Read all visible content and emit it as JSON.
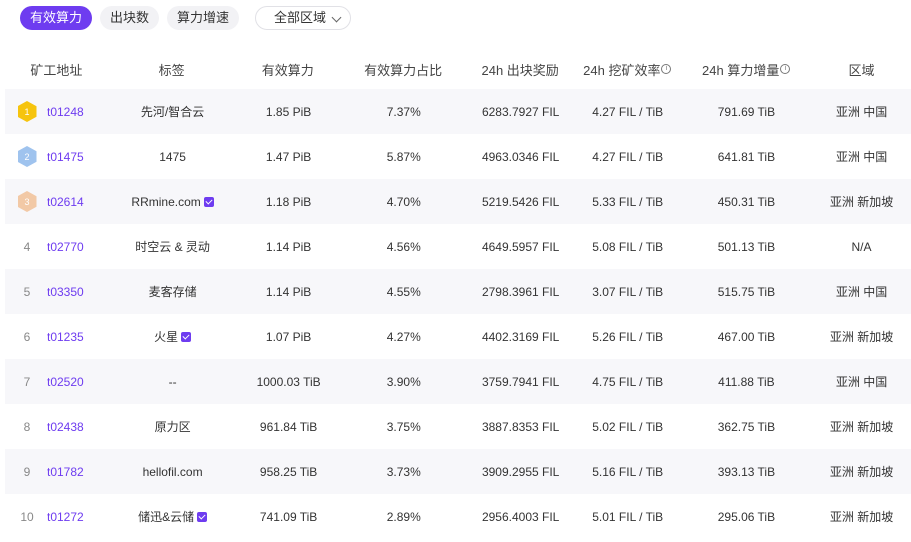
{
  "filters": {
    "tabs": [
      {
        "label": "有效算力",
        "active": true
      },
      {
        "label": "出块数",
        "active": false
      },
      {
        "label": "算力增速",
        "active": false
      }
    ],
    "region_select": {
      "value": "全部区域"
    }
  },
  "table": {
    "headers": {
      "address": "矿工地址",
      "tag": "标签",
      "power": "有效算力",
      "power_pct": "有效算力占比",
      "reward_24h": "24h 出块奖励",
      "efficiency_24h": "24h 挖矿效率",
      "power_increase_24h": "24h 算力增量",
      "region": "区域"
    },
    "rows": [
      {
        "rank": "1",
        "medal": "gold",
        "address": "t01248",
        "tag": "先河/智合云",
        "verified": false,
        "power": "1.85 PiB",
        "power_pct": "7.37%",
        "reward_24h": "6283.7927 FIL",
        "efficiency_24h": "4.27 FIL / TiB",
        "power_increase_24h": "791.69 TiB",
        "region": "亚洲 中国"
      },
      {
        "rank": "2",
        "medal": "silver",
        "address": "t01475",
        "tag": "1475",
        "verified": false,
        "power": "1.47 PiB",
        "power_pct": "5.87%",
        "reward_24h": "4963.0346 FIL",
        "efficiency_24h": "4.27 FIL / TiB",
        "power_increase_24h": "641.81 TiB",
        "region": "亚洲 中国"
      },
      {
        "rank": "3",
        "medal": "bronze",
        "address": "t02614",
        "tag": "RRmine.com",
        "verified": true,
        "power": "1.18 PiB",
        "power_pct": "4.70%",
        "reward_24h": "5219.5426 FIL",
        "efficiency_24h": "5.33 FIL / TiB",
        "power_increase_24h": "450.31 TiB",
        "region": "亚洲 新加坡"
      },
      {
        "rank": "4",
        "medal": "",
        "address": "t02770",
        "tag": "时空云 & 灵动",
        "verified": false,
        "power": "1.14 PiB",
        "power_pct": "4.56%",
        "reward_24h": "4649.5957 FIL",
        "efficiency_24h": "5.08 FIL / TiB",
        "power_increase_24h": "501.13 TiB",
        "region": "N/A"
      },
      {
        "rank": "5",
        "medal": "",
        "address": "t03350",
        "tag": "麦客存储",
        "verified": false,
        "power": "1.14 PiB",
        "power_pct": "4.55%",
        "reward_24h": "2798.3961 FIL",
        "efficiency_24h": "3.07 FIL / TiB",
        "power_increase_24h": "515.75 TiB",
        "region": "亚洲 中国"
      },
      {
        "rank": "6",
        "medal": "",
        "address": "t01235",
        "tag": "火星",
        "verified": true,
        "power": "1.07 PiB",
        "power_pct": "4.27%",
        "reward_24h": "4402.3169 FIL",
        "efficiency_24h": "5.26 FIL / TiB",
        "power_increase_24h": "467.00 TiB",
        "region": "亚洲 新加坡"
      },
      {
        "rank": "7",
        "medal": "",
        "address": "t02520",
        "tag": "--",
        "verified": false,
        "power": "1000.03 TiB",
        "power_pct": "3.90%",
        "reward_24h": "3759.7941 FIL",
        "efficiency_24h": "4.75 FIL / TiB",
        "power_increase_24h": "411.88 TiB",
        "region": "亚洲 中国"
      },
      {
        "rank": "8",
        "medal": "",
        "address": "t02438",
        "tag": "原力区",
        "verified": false,
        "power": "961.84 TiB",
        "power_pct": "3.75%",
        "reward_24h": "3887.8353 FIL",
        "efficiency_24h": "5.02 FIL / TiB",
        "power_increase_24h": "362.75 TiB",
        "region": "亚洲 新加坡"
      },
      {
        "rank": "9",
        "medal": "",
        "address": "t01782",
        "tag": "hellofil.com",
        "verified": false,
        "power": "958.25 TiB",
        "power_pct": "3.73%",
        "reward_24h": "3909.2955 FIL",
        "efficiency_24h": "5.16 FIL / TiB",
        "power_increase_24h": "393.13 TiB",
        "region": "亚洲 新加坡"
      },
      {
        "rank": "10",
        "medal": "",
        "address": "t01272",
        "tag": "储迅&云储",
        "verified": true,
        "power": "741.09 TiB",
        "power_pct": "2.89%",
        "reward_24h": "2956.4003 FIL",
        "efficiency_24h": "5.01 FIL / TiB",
        "power_increase_24h": "295.06 TiB",
        "region": "亚洲 新加坡"
      }
    ]
  },
  "colors": {
    "accent": "#6e3cf0",
    "gold": "#f6c40e",
    "silver": "#9fc3ee",
    "bronze": "#f2c9a6"
  }
}
